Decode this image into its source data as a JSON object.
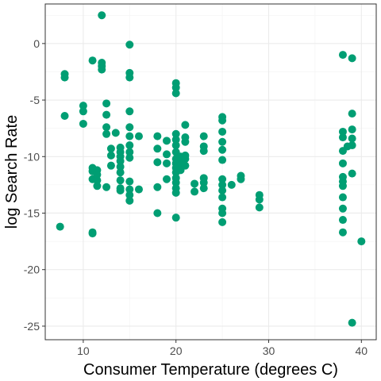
{
  "chart_data": {
    "type": "scatter",
    "xlabel": "Consumer Temperature (degrees C)",
    "ylabel": "log Search Rate",
    "xlim": [
      5.9,
      41.6
    ],
    "ylim": [
      -26.2,
      3.5
    ],
    "x_ticks": [
      10,
      20,
      30,
      40
    ],
    "y_ticks": [
      0,
      -5,
      -10,
      -15,
      -20,
      -25
    ],
    "grid": true,
    "point_color": "#009E73",
    "points": [
      {
        "x": 7.5,
        "y": -16.2
      },
      {
        "x": 8,
        "y": -2.7
      },
      {
        "x": 8,
        "y": -3.0
      },
      {
        "x": 8,
        "y": -6.4
      },
      {
        "x": 10,
        "y": -5.5
      },
      {
        "x": 10,
        "y": -6.0
      },
      {
        "x": 10,
        "y": -7.1
      },
      {
        "x": 11,
        "y": -1.5
      },
      {
        "x": 11,
        "y": -11.0
      },
      {
        "x": 11,
        "y": -11.3
      },
      {
        "x": 11,
        "y": -12.0
      },
      {
        "x": 11,
        "y": -16.7
      },
      {
        "x": 11,
        "y": -16.8
      },
      {
        "x": 11.5,
        "y": -11.2
      },
      {
        "x": 11.5,
        "y": -11.6
      },
      {
        "x": 11.5,
        "y": -12.1
      },
      {
        "x": 11.5,
        "y": -12.6
      },
      {
        "x": 12,
        "y": 2.5
      },
      {
        "x": 12,
        "y": -1.7
      },
      {
        "x": 12,
        "y": -2.0
      },
      {
        "x": 12,
        "y": -2.3
      },
      {
        "x": 12.5,
        "y": -5.3
      },
      {
        "x": 12.5,
        "y": -6.3
      },
      {
        "x": 12.5,
        "y": -7.4
      },
      {
        "x": 12.5,
        "y": -8.0
      },
      {
        "x": 12.5,
        "y": -12.7
      },
      {
        "x": 13,
        "y": -9.3
      },
      {
        "x": 13,
        "y": -9.9
      },
      {
        "x": 13,
        "y": -10.8
      },
      {
        "x": 13.5,
        "y": -7.9
      },
      {
        "x": 14,
        "y": -9.2
      },
      {
        "x": 14,
        "y": -9.6
      },
      {
        "x": 14,
        "y": -10.0
      },
      {
        "x": 14,
        "y": -10.4
      },
      {
        "x": 14,
        "y": -10.9
      },
      {
        "x": 14,
        "y": -11.4
      },
      {
        "x": 14,
        "y": -12.1
      },
      {
        "x": 14,
        "y": -12.8
      },
      {
        "x": 14,
        "y": -13.0
      },
      {
        "x": 15,
        "y": -0.1
      },
      {
        "x": 15,
        "y": -2.6
      },
      {
        "x": 15,
        "y": -3.0
      },
      {
        "x": 15,
        "y": -6.0
      },
      {
        "x": 15,
        "y": -7.4
      },
      {
        "x": 15,
        "y": -8.2
      },
      {
        "x": 15,
        "y": -9.0
      },
      {
        "x": 15,
        "y": -9.6
      },
      {
        "x": 15,
        "y": -10.1
      },
      {
        "x": 15,
        "y": -12.2
      },
      {
        "x": 15,
        "y": -12.9
      },
      {
        "x": 15,
        "y": -13.4
      },
      {
        "x": 15,
        "y": -13.9
      },
      {
        "x": 16,
        "y": -8.2
      },
      {
        "x": 16,
        "y": -12.9
      },
      {
        "x": 18,
        "y": -8.2
      },
      {
        "x": 18,
        "y": -9.3
      },
      {
        "x": 18,
        "y": -10.5
      },
      {
        "x": 18,
        "y": -12.7
      },
      {
        "x": 18,
        "y": -15.0
      },
      {
        "x": 19,
        "y": -8.6
      },
      {
        "x": 19,
        "y": -9.8
      },
      {
        "x": 19,
        "y": -10.6
      },
      {
        "x": 19,
        "y": -12.0
      },
      {
        "x": 20,
        "y": -3.5
      },
      {
        "x": 20,
        "y": -3.9
      },
      {
        "x": 20,
        "y": -4.4
      },
      {
        "x": 20,
        "y": -8.0
      },
      {
        "x": 20,
        "y": -8.5
      },
      {
        "x": 20,
        "y": -9.0
      },
      {
        "x": 20,
        "y": -9.6
      },
      {
        "x": 20,
        "y": -10.2
      },
      {
        "x": 20,
        "y": -10.6
      },
      {
        "x": 20,
        "y": -11.0
      },
      {
        "x": 20,
        "y": -11.4
      },
      {
        "x": 20,
        "y": -11.9
      },
      {
        "x": 20,
        "y": -12.3
      },
      {
        "x": 20,
        "y": -12.8
      },
      {
        "x": 20,
        "y": -13.2
      },
      {
        "x": 20,
        "y": -15.4
      },
      {
        "x": 20.5,
        "y": -10.0
      },
      {
        "x": 20.5,
        "y": -10.6
      },
      {
        "x": 20.5,
        "y": -11.2
      },
      {
        "x": 21,
        "y": -7.2
      },
      {
        "x": 21,
        "y": -8.3
      },
      {
        "x": 21,
        "y": -8.7
      },
      {
        "x": 21,
        "y": -9.9
      },
      {
        "x": 21,
        "y": -10.2
      },
      {
        "x": 21,
        "y": -10.8
      },
      {
        "x": 22,
        "y": -12.4
      },
      {
        "x": 22,
        "y": -13.1
      },
      {
        "x": 23,
        "y": -8.2
      },
      {
        "x": 23,
        "y": -9.1
      },
      {
        "x": 23,
        "y": -9.5
      },
      {
        "x": 23,
        "y": -11.9
      },
      {
        "x": 23,
        "y": -12.3
      },
      {
        "x": 23,
        "y": -12.8
      },
      {
        "x": 25,
        "y": -6.5
      },
      {
        "x": 25,
        "y": -6.8
      },
      {
        "x": 25,
        "y": -7.8
      },
      {
        "x": 25,
        "y": -8.7
      },
      {
        "x": 25,
        "y": -9.4
      },
      {
        "x": 25,
        "y": -10.3
      },
      {
        "x": 25,
        "y": -12.0
      },
      {
        "x": 25,
        "y": -12.5
      },
      {
        "x": 25,
        "y": -13.0
      },
      {
        "x": 25,
        "y": -13.6
      },
      {
        "x": 25,
        "y": -14.6
      },
      {
        "x": 25,
        "y": -15.0
      },
      {
        "x": 25,
        "y": -15.8
      },
      {
        "x": 26,
        "y": -12.5
      },
      {
        "x": 27,
        "y": -11.7
      },
      {
        "x": 27,
        "y": -12.0
      },
      {
        "x": 29,
        "y": -13.4
      },
      {
        "x": 29,
        "y": -13.8
      },
      {
        "x": 29,
        "y": -14.5
      },
      {
        "x": 38,
        "y": -1.0
      },
      {
        "x": 38,
        "y": -7.8
      },
      {
        "x": 38,
        "y": -8.3
      },
      {
        "x": 38,
        "y": -9.5
      },
      {
        "x": 38,
        "y": -10.6
      },
      {
        "x": 38,
        "y": -11.8
      },
      {
        "x": 38,
        "y": -12.2
      },
      {
        "x": 38,
        "y": -12.6
      },
      {
        "x": 38,
        "y": -13.6
      },
      {
        "x": 38,
        "y": -14.6
      },
      {
        "x": 38,
        "y": -15.6
      },
      {
        "x": 38,
        "y": -16.7
      },
      {
        "x": 38.5,
        "y": -9.1
      },
      {
        "x": 39,
        "y": -1.3
      },
      {
        "x": 39,
        "y": -6.2
      },
      {
        "x": 39,
        "y": -7.6
      },
      {
        "x": 39,
        "y": -8.4
      },
      {
        "x": 39,
        "y": -9.0
      },
      {
        "x": 39,
        "y": -11.5
      },
      {
        "x": 39,
        "y": -24.7
      },
      {
        "x": 40,
        "y": -17.5
      }
    ]
  }
}
